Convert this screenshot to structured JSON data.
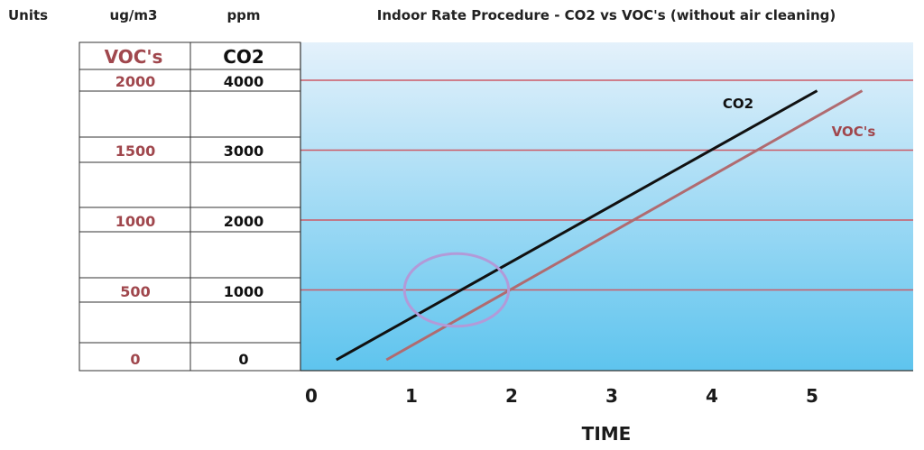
{
  "header": {
    "units": "Units",
    "voc_unit": "ug/m3",
    "co2_unit": "ppm",
    "title": "Indoor Rate Procedure - CO2 vs VOC's (without air cleaning)"
  },
  "table": {
    "voc_header": "VOC's",
    "co2_header": "CO2",
    "rows": [
      {
        "co2": "4000",
        "voc": "2000"
      },
      {
        "co2": "3000",
        "voc": "1500"
      },
      {
        "co2": "2000",
        "voc": "1000"
      },
      {
        "co2": "1000",
        "voc": "500"
      },
      {
        "co2": "0",
        "voc": "0"
      }
    ]
  },
  "colors": {
    "bg_top": "#e4f1fb",
    "bg_bottom": "#5ec4ee",
    "gridline": "#cc5a66",
    "co2_line": "#111111",
    "voc_line": "#b06b70",
    "voc_text": "#a0474d",
    "ellipse": "#b29ad8"
  },
  "chart_data": {
    "type": "line",
    "title": "Indoor Rate Procedure - CO2 vs VOC's (without air cleaning)",
    "xlabel": "TIME",
    "ylabel": "ppm",
    "x_ticks": [
      0,
      1,
      2,
      3,
      4,
      5
    ],
    "xlim": [
      0,
      5.9
    ],
    "ylim": [
      -130,
      4300
    ],
    "y_gridlines": [
      1000,
      2000,
      3000,
      4000
    ],
    "series": [
      {
        "name": "CO2",
        "x": [
          0.25,
          5.05
        ],
        "y": [
          0,
          3850
        ]
      },
      {
        "name": "VOC's",
        "x": [
          0.75,
          5.5
        ],
        "y": [
          0,
          3850
        ]
      }
    ],
    "highlight": {
      "shape": "ellipse",
      "cx": 1.45,
      "cy": 1000,
      "rx": 0.52,
      "ry": 520
    }
  }
}
